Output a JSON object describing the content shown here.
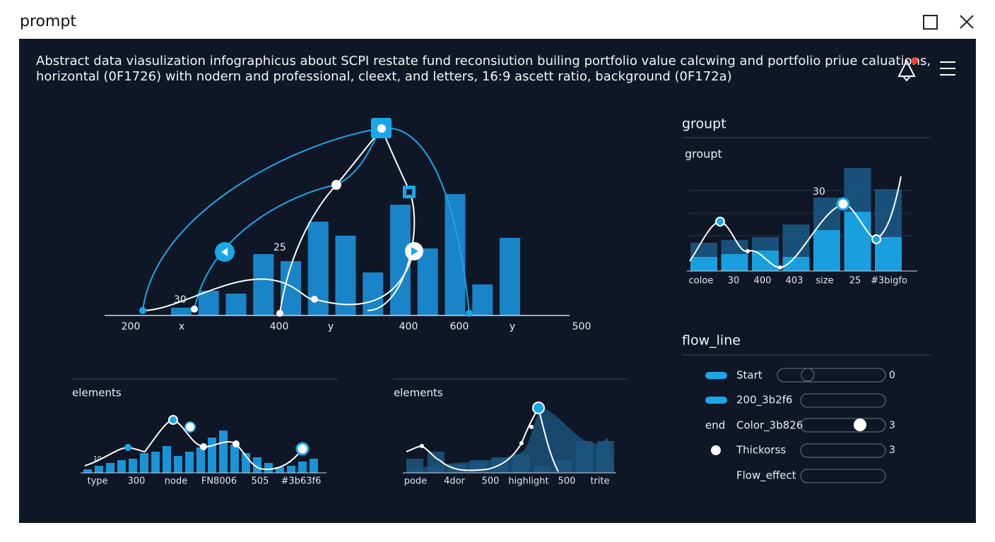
{
  "header": {
    "title": "prompt"
  },
  "description": [
    "Abstract data viasulization infographicus about SCPI restate fund reconsiution builing portfolio value calcwing and portfolio priue caluations,",
    "horizontal (0F1726) with nodern and professional, cleext, and letters, 16:9 ascett ratio, background (0F172a)"
  ],
  "main_chart": {
    "labels": [
      "30",
      "25"
    ],
    "x_labels": [
      "200",
      "x",
      "400",
      "y",
      "400",
      "600",
      "y",
      "500"
    ],
    "bars": [
      5.5,
      17.5,
      15.5,
      43.5,
      38.5,
      66.5,
      56.5,
      30.5,
      78.5,
      47.5,
      86,
      22,
      55
    ]
  },
  "group_panel": {
    "title": "groupt",
    "subtitle": "groupt",
    "label": "30",
    "x_labels": [
      "coloe",
      "30",
      "400",
      "403",
      "size",
      "25",
      "#3bigfo"
    ],
    "back_bars": [
      40,
      44,
      48,
      66,
      104,
      146,
      116
    ],
    "front_bars": [
      20,
      24,
      29,
      20,
      58,
      84,
      48
    ]
  },
  "flow_panel": {
    "title": "flow_line",
    "rows": [
      {
        "label": "Start",
        "value": "0"
      },
      {
        "label": "200_3b2f6"
      },
      {
        "prefix": "end",
        "label": "Color_3b826",
        "value": "3"
      },
      {
        "label": "Thickorss",
        "value": "3"
      },
      {
        "label": "Flow_effect"
      }
    ]
  },
  "elements_left": {
    "title": "elements",
    "label": "10",
    "x_labels": [
      "type",
      "300",
      "node",
      "FN8006",
      "505",
      "#3b63f6"
    ],
    "bars": [
      5,
      10,
      14,
      18,
      20,
      28,
      30,
      38,
      24,
      30,
      36,
      50,
      60,
      40,
      28,
      22,
      14,
      8,
      10,
      16,
      20
    ]
  },
  "elements_mid": {
    "title": "elements",
    "x_labels": [
      "pode",
      "4dor",
      "500",
      "highlight",
      "500",
      "trite"
    ],
    "bars": [
      20,
      30,
      12,
      18,
      22,
      26,
      10,
      18,
      45,
      45
    ]
  }
}
